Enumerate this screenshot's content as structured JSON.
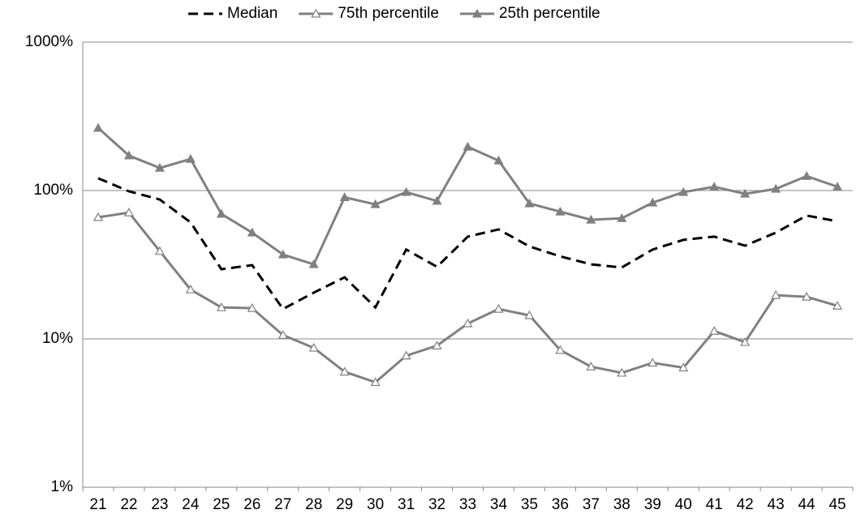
{
  "chart_data": {
    "type": "line",
    "categories": [
      "21",
      "22",
      "23",
      "24",
      "25",
      "26",
      "27",
      "28",
      "29",
      "30",
      "31",
      "32",
      "33",
      "34",
      "35",
      "36",
      "37",
      "38",
      "39",
      "40",
      "41",
      "42",
      "43",
      "44",
      "45"
    ],
    "series": [
      {
        "name": "Median",
        "color": "#000000",
        "dashed": true,
        "marker": "none",
        "values": [
          121,
          98.8,
          87,
          61,
          29.5,
          31.4,
          15.9,
          20.5,
          26,
          16.3,
          40,
          30.6,
          48.9,
          54.7,
          42,
          36,
          31.8,
          30.3,
          40,
          46.5,
          48.9,
          42.5,
          52,
          67.8,
          62
        ]
      },
      {
        "name": "75th percentile",
        "color": "#808080",
        "dashed": false,
        "marker": "hollow-triangle",
        "values": [
          66,
          71,
          39,
          21.5,
          16.3,
          16.1,
          10.6,
          8.7,
          6.0,
          5.1,
          7.7,
          9.0,
          12.7,
          15.9,
          14.4,
          8.4,
          6.5,
          5.9,
          6.9,
          6.4,
          11.3,
          9.5,
          19.7,
          19.2,
          16.7
        ]
      },
      {
        "name": "25th percentile",
        "color": "#808080",
        "dashed": false,
        "marker": "filled-triangle",
        "values": [
          264,
          172,
          142,
          163,
          69.5,
          52,
          37,
          31.8,
          90,
          80.7,
          97.5,
          85,
          197,
          159,
          81.8,
          72,
          63.5,
          65,
          82.8,
          97.5,
          106,
          95,
          102.5,
          125,
          106
        ]
      }
    ],
    "ylim": [
      1,
      1000
    ],
    "log_y": true,
    "yticks": [
      {
        "value": 1,
        "label": "1%"
      },
      {
        "value": 10,
        "label": "10%"
      },
      {
        "value": 100,
        "label": "100%"
      },
      {
        "value": 1000,
        "label": "1000%"
      }
    ],
    "grid": true,
    "legend": "top"
  }
}
